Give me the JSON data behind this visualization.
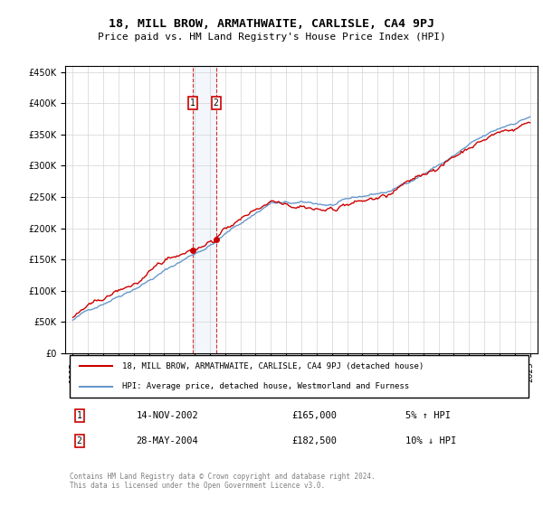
{
  "title": "18, MILL BROW, ARMATHWAITE, CARLISLE, CA4 9PJ",
  "subtitle": "Price paid vs. HM Land Registry's House Price Index (HPI)",
  "legend_line1": "18, MILL BROW, ARMATHWAITE, CARLISLE, CA4 9PJ (detached house)",
  "legend_line2": "HPI: Average price, detached house, Westmorland and Furness",
  "transaction1_date": "14-NOV-2002",
  "transaction1_price": 165000,
  "transaction1_pct": "5% ↑ HPI",
  "transaction2_date": "28-MAY-2004",
  "transaction2_price": 182500,
  "transaction2_pct": "10% ↓ HPI",
  "footer": "Contains HM Land Registry data © Crown copyright and database right 2024.\nThis data is licensed under the Open Government Licence v3.0.",
  "red_color": "#cc0000",
  "blue_color": "#6699cc",
  "ylim": [
    0,
    460000
  ],
  "yticks": [
    0,
    50000,
    100000,
    150000,
    200000,
    250000,
    300000,
    350000,
    400000,
    450000
  ],
  "xlim_start": 1994.5,
  "xlim_end": 2025.5,
  "transaction1_year": 2002.87,
  "transaction2_year": 2004.4
}
